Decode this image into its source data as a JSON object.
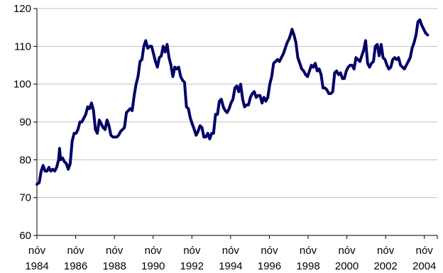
{
  "chart_data": {
    "type": "line",
    "title": "",
    "xlabel": "",
    "ylabel": "",
    "ylim": [
      60,
      120
    ],
    "yticks": [
      60,
      70,
      80,
      90,
      100,
      110,
      120
    ],
    "xlim": [
      1984.83,
      2005.5
    ],
    "grid": "horizontal",
    "legend": "none",
    "line_color": "#000066",
    "x_ticks": [
      {
        "x": 1984.83,
        "month": "nóv",
        "year": "1984"
      },
      {
        "x": 1986.83,
        "month": "nóv",
        "year": "1986"
      },
      {
        "x": 1988.83,
        "month": "nóv",
        "year": "1988"
      },
      {
        "x": 1990.83,
        "month": "nóv",
        "year": "1990"
      },
      {
        "x": 1992.83,
        "month": "nóv",
        "year": "1992"
      },
      {
        "x": 1994.83,
        "month": "nóv",
        "year": "1994"
      },
      {
        "x": 1996.83,
        "month": "nóv",
        "year": "1996"
      },
      {
        "x": 1998.83,
        "month": "nóv",
        "year": "1998"
      },
      {
        "x": 2000.83,
        "month": "nóv",
        "year": "2000"
      },
      {
        "x": 2002.83,
        "month": "nóv",
        "year": "2002"
      },
      {
        "x": 2004.83,
        "month": "nóv",
        "year": "2004"
      }
    ],
    "series": [
      {
        "points": [
          [
            1984.83,
            73.5
          ],
          [
            1984.95,
            74.0
          ],
          [
            1985.05,
            77.0
          ],
          [
            1985.15,
            78.5
          ],
          [
            1985.25,
            77.0
          ],
          [
            1985.35,
            77.0
          ],
          [
            1985.45,
            78.0
          ],
          [
            1985.55,
            77.0
          ],
          [
            1985.65,
            77.5
          ],
          [
            1985.75,
            77.0
          ],
          [
            1985.85,
            78.0
          ],
          [
            1985.95,
            80.0
          ],
          [
            1986.0,
            83.0
          ],
          [
            1986.05,
            80.0
          ],
          [
            1986.15,
            80.5
          ],
          [
            1986.25,
            79.5
          ],
          [
            1986.35,
            79.0
          ],
          [
            1986.45,
            77.5
          ],
          [
            1986.55,
            79.0
          ],
          [
            1986.65,
            85.0
          ],
          [
            1986.75,
            87.0
          ],
          [
            1986.85,
            87.0
          ],
          [
            1986.95,
            88.0
          ],
          [
            1987.05,
            90.0
          ],
          [
            1987.15,
            90.0
          ],
          [
            1987.25,
            91.0
          ],
          [
            1987.35,
            92.0
          ],
          [
            1987.45,
            94.0
          ],
          [
            1987.55,
            93.5
          ],
          [
            1987.65,
            95.0
          ],
          [
            1987.75,
            93.0
          ],
          [
            1987.85,
            88.0
          ],
          [
            1987.95,
            87.0
          ],
          [
            1988.05,
            90.5
          ],
          [
            1988.15,
            89.5
          ],
          [
            1988.25,
            88.5
          ],
          [
            1988.35,
            88.0
          ],
          [
            1988.45,
            90.5
          ],
          [
            1988.55,
            89.0
          ],
          [
            1988.65,
            86.5
          ],
          [
            1988.75,
            86.0
          ],
          [
            1988.85,
            86.0
          ],
          [
            1988.95,
            86.0
          ],
          [
            1989.05,
            86.5
          ],
          [
            1989.15,
            87.5
          ],
          [
            1989.25,
            88.0
          ],
          [
            1989.35,
            88.5
          ],
          [
            1989.45,
            92.5
          ],
          [
            1989.55,
            93.0
          ],
          [
            1989.65,
            93.5
          ],
          [
            1989.75,
            93.0
          ],
          [
            1989.85,
            97.0
          ],
          [
            1989.95,
            100.0
          ],
          [
            1990.05,
            102.0
          ],
          [
            1990.15,
            106.0
          ],
          [
            1990.25,
            106.5
          ],
          [
            1990.35,
            110.0
          ],
          [
            1990.45,
            111.5
          ],
          [
            1990.55,
            109.5
          ],
          [
            1990.65,
            110.0
          ],
          [
            1990.75,
            110.0
          ],
          [
            1990.85,
            108.0
          ],
          [
            1990.95,
            106.0
          ],
          [
            1991.05,
            104.5
          ],
          [
            1991.15,
            107.0
          ],
          [
            1991.25,
            107.5
          ],
          [
            1991.35,
            110.0
          ],
          [
            1991.45,
            108.5
          ],
          [
            1991.55,
            110.5
          ],
          [
            1991.65,
            107.0
          ],
          [
            1991.75,
            105.0
          ],
          [
            1991.85,
            102.0
          ],
          [
            1991.95,
            104.5
          ],
          [
            1992.05,
            104.0
          ],
          [
            1992.15,
            104.5
          ],
          [
            1992.25,
            102.0
          ],
          [
            1992.35,
            101.0
          ],
          [
            1992.45,
            100.5
          ],
          [
            1992.55,
            94.0
          ],
          [
            1992.65,
            93.5
          ],
          [
            1992.75,
            91.0
          ],
          [
            1992.85,
            89.5
          ],
          [
            1992.95,
            88.0
          ],
          [
            1993.05,
            86.5
          ],
          [
            1993.15,
            87.5
          ],
          [
            1993.25,
            89.0
          ],
          [
            1993.35,
            88.5
          ],
          [
            1993.45,
            86.0
          ],
          [
            1993.55,
            86.0
          ],
          [
            1993.65,
            87.0
          ],
          [
            1993.75,
            85.5
          ],
          [
            1993.85,
            87.0
          ],
          [
            1993.95,
            87.0
          ],
          [
            1994.05,
            92.0
          ],
          [
            1994.15,
            92.0
          ],
          [
            1994.25,
            95.5
          ],
          [
            1994.35,
            96.0
          ],
          [
            1994.45,
            94.0
          ],
          [
            1994.55,
            93.0
          ],
          [
            1994.65,
            92.5
          ],
          [
            1994.75,
            93.5
          ],
          [
            1994.85,
            95.0
          ],
          [
            1994.95,
            96.0
          ],
          [
            1995.05,
            99.0
          ],
          [
            1995.15,
            99.5
          ],
          [
            1995.25,
            98.0
          ],
          [
            1995.35,
            100.0
          ],
          [
            1995.45,
            96.0
          ],
          [
            1995.55,
            94.0
          ],
          [
            1995.65,
            94.5
          ],
          [
            1995.75,
            94.5
          ],
          [
            1995.85,
            96.5
          ],
          [
            1995.95,
            97.5
          ],
          [
            1996.05,
            98.0
          ],
          [
            1996.15,
            96.5
          ],
          [
            1996.25,
            97.0
          ],
          [
            1996.35,
            97.0
          ],
          [
            1996.45,
            95.0
          ],
          [
            1996.55,
            96.5
          ],
          [
            1996.65,
            95.5
          ],
          [
            1996.75,
            96.5
          ],
          [
            1996.85,
            100.0
          ],
          [
            1996.95,
            102.0
          ],
          [
            1997.05,
            105.5
          ],
          [
            1997.15,
            106.0
          ],
          [
            1997.25,
            106.5
          ],
          [
            1997.35,
            106.0
          ],
          [
            1997.45,
            107.0
          ],
          [
            1997.55,
            108.0
          ],
          [
            1997.65,
            109.5
          ],
          [
            1997.75,
            111.0
          ],
          [
            1997.85,
            112.0
          ],
          [
            1997.95,
            113.5
          ],
          [
            1998.0,
            114.5
          ],
          [
            1998.1,
            113.0
          ],
          [
            1998.2,
            111.0
          ],
          [
            1998.3,
            107.0
          ],
          [
            1998.4,
            105.5
          ],
          [
            1998.5,
            104.0
          ],
          [
            1998.6,
            103.5
          ],
          [
            1998.7,
            102.5
          ],
          [
            1998.8,
            102.0
          ],
          [
            1998.9,
            103.5
          ],
          [
            1999.0,
            105.0
          ],
          [
            1999.1,
            104.5
          ],
          [
            1999.2,
            105.5
          ],
          [
            1999.3,
            103.5
          ],
          [
            1999.4,
            104.0
          ],
          [
            1999.5,
            102.5
          ],
          [
            1999.6,
            99.0
          ],
          [
            1999.7,
            99.0
          ],
          [
            1999.8,
            98.5
          ],
          [
            1999.9,
            97.5
          ],
          [
            2000.0,
            97.5
          ],
          [
            2000.1,
            98.0
          ],
          [
            2000.2,
            103.0
          ],
          [
            2000.3,
            103.5
          ],
          [
            2000.4,
            102.5
          ],
          [
            2000.5,
            103.0
          ],
          [
            2000.6,
            101.5
          ],
          [
            2000.7,
            101.5
          ],
          [
            2000.8,
            103.5
          ],
          [
            2000.9,
            104.5
          ],
          [
            2001.0,
            105.0
          ],
          [
            2001.1,
            105.0
          ],
          [
            2001.2,
            104.0
          ],
          [
            2001.3,
            107.0
          ],
          [
            2001.4,
            106.5
          ],
          [
            2001.5,
            106.0
          ],
          [
            2001.6,
            107.5
          ],
          [
            2001.7,
            109.0
          ],
          [
            2001.8,
            111.5
          ],
          [
            2001.9,
            105.5
          ],
          [
            2002.0,
            104.5
          ],
          [
            2002.1,
            105.5
          ],
          [
            2002.2,
            106.0
          ],
          [
            2002.3,
            110.0
          ],
          [
            2002.4,
            110.5
          ],
          [
            2002.5,
            107.5
          ],
          [
            2002.6,
            110.5
          ],
          [
            2002.7,
            107.0
          ],
          [
            2002.8,
            106.5
          ],
          [
            2002.9,
            105.0
          ],
          [
            2003.0,
            104.0
          ],
          [
            2003.1,
            104.5
          ],
          [
            2003.2,
            106.5
          ],
          [
            2003.3,
            107.0
          ],
          [
            2003.4,
            106.5
          ],
          [
            2003.5,
            107.0
          ],
          [
            2003.6,
            105.0
          ],
          [
            2003.7,
            104.5
          ],
          [
            2003.8,
            104.0
          ],
          [
            2003.9,
            105.0
          ],
          [
            2004.0,
            106.0
          ],
          [
            2004.1,
            107.0
          ],
          [
            2004.2,
            109.5
          ],
          [
            2004.3,
            111.0
          ],
          [
            2004.4,
            113.0
          ],
          [
            2004.5,
            116.5
          ],
          [
            2004.6,
            117.0
          ],
          [
            2004.7,
            115.5
          ],
          [
            2004.8,
            114.5
          ],
          [
            2004.9,
            113.5
          ],
          [
            2005.0,
            113.0
          ]
        ]
      }
    ]
  }
}
